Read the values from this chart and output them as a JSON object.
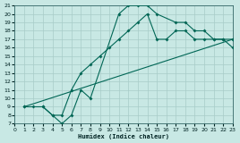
{
  "xlabel": "Humidex (Indice chaleur)",
  "bg_color": "#c8e8e4",
  "grid_color": "#a8ccc8",
  "line_color": "#006655",
  "xlim": [
    0,
    23
  ],
  "ylim": [
    7,
    21
  ],
  "xticks": [
    0,
    1,
    2,
    3,
    4,
    5,
    6,
    7,
    8,
    9,
    10,
    11,
    12,
    13,
    14,
    15,
    16,
    17,
    18,
    19,
    20,
    21,
    22,
    23
  ],
  "yticks": [
    7,
    8,
    9,
    10,
    11,
    12,
    13,
    14,
    15,
    16,
    17,
    18,
    19,
    20,
    21
  ],
  "curve1_x": [
    1,
    2,
    3,
    4,
    5,
    6,
    7,
    8,
    11,
    12,
    13,
    14,
    15,
    17,
    18,
    19,
    20,
    21,
    22,
    23
  ],
  "curve1_y": [
    9,
    9,
    9,
    8,
    7,
    8,
    11,
    10,
    20,
    21,
    21,
    21,
    20,
    19,
    19,
    18,
    18,
    17,
    17,
    17
  ],
  "curve2_x": [
    1,
    23
  ],
  "curve2_y": [
    9,
    17
  ],
  "curve3_x": [
    3,
    4,
    5,
    6,
    7,
    8,
    9,
    10,
    11,
    12,
    13,
    14,
    15,
    16,
    17,
    18,
    19,
    20,
    21,
    22,
    23
  ],
  "curve3_y": [
    9,
    8,
    8,
    11,
    13,
    14,
    15,
    16,
    17,
    18,
    19,
    20,
    17,
    17,
    18,
    18,
    17,
    17,
    17,
    17,
    16
  ]
}
